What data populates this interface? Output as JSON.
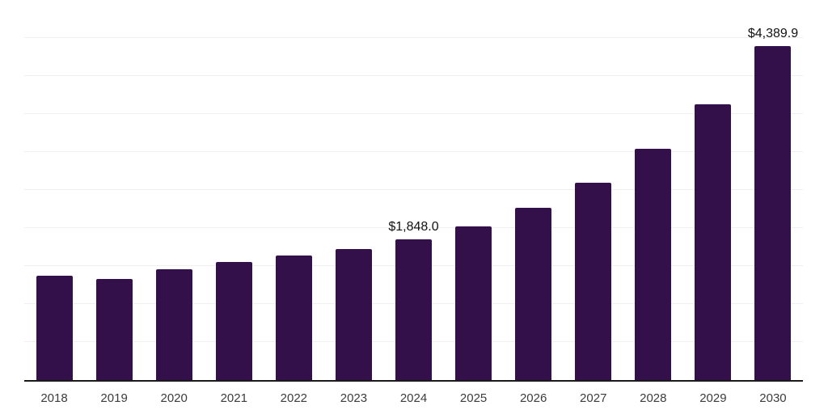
{
  "chart_data": {
    "type": "bar",
    "title": "",
    "xlabel": "",
    "ylabel": "",
    "categories": [
      "2018",
      "2019",
      "2020",
      "2021",
      "2022",
      "2023",
      "2024",
      "2025",
      "2026",
      "2027",
      "2028",
      "2029",
      "2030"
    ],
    "values": [
      1375,
      1330,
      1460,
      1550,
      1640,
      1722,
      1848.0,
      2025,
      2270,
      2600,
      3048,
      3625,
      4389.9
    ],
    "point_labels": [
      "",
      "",
      "",
      "",
      "",
      "",
      "$1,848.0",
      "",
      "",
      "",
      "",
      "",
      "$4,389.9"
    ],
    "ylim": [
      0,
      5000
    ],
    "gridline_step": 500,
    "grid": "horizontal-only",
    "legend": "none",
    "y_tick_labels_visible": false,
    "colors": {
      "bar": "#34104a",
      "axis_line": "#1a1a1a",
      "gridline": "#f0f0f1",
      "tick_label_text": "#3c3c3c",
      "data_label_text": "#111111",
      "background": "#ffffff"
    }
  }
}
